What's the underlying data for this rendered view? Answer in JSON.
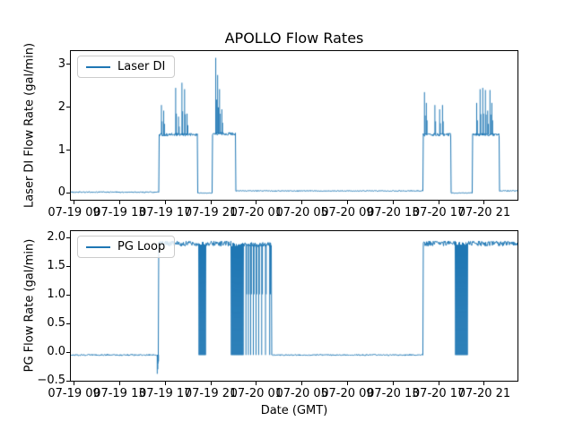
{
  "figure": {
    "title": "APOLLO Flow Rates",
    "xlabel": "Date (GMT)",
    "background": "#ffffff",
    "line_color": "#1f77b4"
  },
  "chart_data": [
    {
      "type": "line",
      "title": "APOLLO Flow Rates",
      "ylabel": "Laser DI Flow Rate (gal/min)",
      "legend": {
        "label": "Laser DI",
        "position": "upper left"
      },
      "series_color": "#1f77b4",
      "grid": false,
      "ylim": [
        -0.1575,
        3.3075
      ],
      "yticks": [
        {
          "label": "0",
          "value": 0
        },
        {
          "label": "1",
          "value": 1
        },
        {
          "label": "2",
          "value": 2
        },
        {
          "label": "3",
          "value": 3
        }
      ],
      "xlim": [
        "07-19 08:43",
        "07-20 23:55"
      ],
      "xticks": [
        {
          "label": "07-19 09",
          "time": "07-19 09:00"
        },
        {
          "label": "07-19 13",
          "time": "07-19 13:00"
        },
        {
          "label": "07-19 17",
          "time": "07-19 17:00"
        },
        {
          "label": "07-19 21",
          "time": "07-19 21:00"
        },
        {
          "label": "07-20 01",
          "time": "07-20 01:00"
        },
        {
          "label": "07-20 05",
          "time": "07-20 05:00"
        },
        {
          "label": "07-20 09",
          "time": "07-20 09:00"
        },
        {
          "label": "07-20 13",
          "time": "07-20 13:00"
        },
        {
          "label": "07-20 17",
          "time": "07-20 17:00"
        },
        {
          "label": "07-20 21",
          "time": "07-20 21:00"
        }
      ],
      "segments": [
        {
          "t0": "07-19 08:43",
          "t1": "07-19 16:26",
          "level": 0.02,
          "noise": 0.012
        },
        {
          "t0": "07-19 16:26",
          "t1": "07-19 19:49",
          "level": 1.36,
          "noise": 0.035,
          "spikes": [
            {
              "t": "07-19 16:40",
              "v": 2.05
            },
            {
              "t": "07-19 16:52",
              "v": 1.92
            },
            {
              "t": "07-19 17:55",
              "v": 2.45
            },
            {
              "t": "07-19 18:10",
              "v": 1.78
            },
            {
              "t": "07-19 18:28",
              "v": 2.57
            },
            {
              "t": "07-19 18:42",
              "v": 2.42
            },
            {
              "t": "07-19 18:55",
              "v": 1.85
            }
          ]
        },
        {
          "t0": "07-19 19:49",
          "t1": "07-19 21:09",
          "level": 0.0,
          "noise": 0.006
        },
        {
          "t0": "07-19 21:09",
          "t1": "07-19 23:12",
          "level": 1.38,
          "noise": 0.035,
          "spikes": [
            {
              "t": "07-19 21:26",
              "v": 3.15
            },
            {
              "t": "07-19 21:36",
              "v": 2.75
            },
            {
              "t": "07-19 21:46",
              "v": 2.42
            },
            {
              "t": "07-19 21:58",
              "v": 1.95
            }
          ]
        },
        {
          "t0": "07-19 23:12",
          "t1": "07-20 15:39",
          "level": 0.05,
          "noise": 0.01
        },
        {
          "t0": "07-20 15:39",
          "t1": "07-20 18:05",
          "level": 1.36,
          "noise": 0.035,
          "spikes": [
            {
              "t": "07-20 15:45",
              "v": 2.35
            },
            {
              "t": "07-20 15:55",
              "v": 2.1
            },
            {
              "t": "07-20 16:40",
              "v": 2.05
            },
            {
              "t": "07-20 17:05",
              "v": 1.95
            },
            {
              "t": "07-20 17:20",
              "v": 2.05
            }
          ]
        },
        {
          "t0": "07-20 18:05",
          "t1": "07-20 19:58",
          "level": 0.0,
          "noise": 0.006
        },
        {
          "t0": "07-20 19:58",
          "t1": "07-20 22:20",
          "level": 1.36,
          "noise": 0.035,
          "spikes": [
            {
              "t": "07-20 20:20",
              "v": 2.1
            },
            {
              "t": "07-20 20:38",
              "v": 2.42
            },
            {
              "t": "07-20 20:52",
              "v": 2.45
            },
            {
              "t": "07-20 21:06",
              "v": 2.4
            },
            {
              "t": "07-20 21:18",
              "v": 1.92
            },
            {
              "t": "07-20 21:30",
              "v": 2.4
            },
            {
              "t": "07-20 21:40",
              "v": 2.1
            }
          ]
        },
        {
          "t0": "07-20 22:20",
          "t1": "07-20 23:55",
          "level": 0.05,
          "noise": 0.01
        }
      ]
    },
    {
      "type": "line",
      "ylabel": "PG Flow Rate (gal/min)",
      "xlabel": "Date (GMT)",
      "legend": {
        "label": "PG Loop",
        "position": "upper left"
      },
      "series_color": "#1f77b4",
      "grid": false,
      "ylim": [
        -0.5,
        2.117
      ],
      "yticks": [
        {
          "label": "−0.5",
          "value": -0.5
        },
        {
          "label": "0.0",
          "value": 0.0
        },
        {
          "label": "0.5",
          "value": 0.5
        },
        {
          "label": "1.0",
          "value": 1.0
        },
        {
          "label": "1.5",
          "value": 1.5
        },
        {
          "label": "2.0",
          "value": 2.0
        }
      ],
      "xlim": [
        "07-19 08:43",
        "07-20 23:55"
      ],
      "xticks": [
        {
          "label": "07-19 09",
          "time": "07-19 09:00"
        },
        {
          "label": "07-19 13",
          "time": "07-19 13:00"
        },
        {
          "label": "07-19 17",
          "time": "07-19 17:00"
        },
        {
          "label": "07-19 21",
          "time": "07-19 21:00"
        },
        {
          "label": "07-20 01",
          "time": "07-20 01:00"
        },
        {
          "label": "07-20 05",
          "time": "07-20 05:00"
        },
        {
          "label": "07-20 09",
          "time": "07-20 09:00"
        },
        {
          "label": "07-20 13",
          "time": "07-20 13:00"
        },
        {
          "label": "07-20 17",
          "time": "07-20 17:00"
        },
        {
          "label": "07-20 21",
          "time": "07-20 21:00"
        }
      ],
      "segments": [
        {
          "t0": "07-19 08:43",
          "t1": "07-19 16:24",
          "level": -0.05,
          "noise": 0.012,
          "spikes": [
            {
              "t": "07-19 16:18",
              "v": -0.38
            },
            {
              "t": "07-19 16:21",
              "v": -0.3
            }
          ]
        },
        {
          "t0": "07-19 16:24",
          "t1": "07-19 19:58",
          "level": 1.9,
          "noise": 0.045
        },
        {
          "t0": "07-19 19:58",
          "t1": "07-19 20:36",
          "type": "osc",
          "low": -0.05,
          "high": 1.9
        },
        {
          "t0": "07-19 20:36",
          "t1": "07-19 22:48",
          "level": 1.9,
          "noise": 0.045
        },
        {
          "t0": "07-19 22:48",
          "t1": "07-19 23:54",
          "type": "osc",
          "low": -0.05,
          "high": 1.88
        },
        {
          "t0": "07-19 23:54",
          "t1": "07-20 02:20",
          "level": 1.88,
          "noise": 0.04,
          "spikes": [
            {
              "t": "07-20 00:05",
              "v": -0.05
            },
            {
              "t": "07-20 00:18",
              "v": -0.05
            },
            {
              "t": "07-20 00:30",
              "v": -0.05
            },
            {
              "t": "07-20 00:44",
              "v": -0.05
            },
            {
              "t": "07-20 00:58",
              "v": -0.05
            },
            {
              "t": "07-20 01:12",
              "v": -0.05
            },
            {
              "t": "07-20 01:28",
              "v": -0.05
            },
            {
              "t": "07-20 01:48",
              "v": -0.05
            },
            {
              "t": "07-20 02:10",
              "v": -0.05
            }
          ]
        },
        {
          "t0": "07-20 02:20",
          "t1": "07-20 15:39",
          "level": -0.05,
          "noise": 0.01
        },
        {
          "t0": "07-20 15:39",
          "t1": "07-20 18:28",
          "level": 1.9,
          "noise": 0.045
        },
        {
          "t0": "07-20 18:28",
          "t1": "07-20 19:34",
          "type": "osc",
          "low": -0.05,
          "high": 1.9
        },
        {
          "t0": "07-20 19:34",
          "t1": "07-20 23:55",
          "level": 1.9,
          "noise": 0.045
        }
      ]
    }
  ]
}
